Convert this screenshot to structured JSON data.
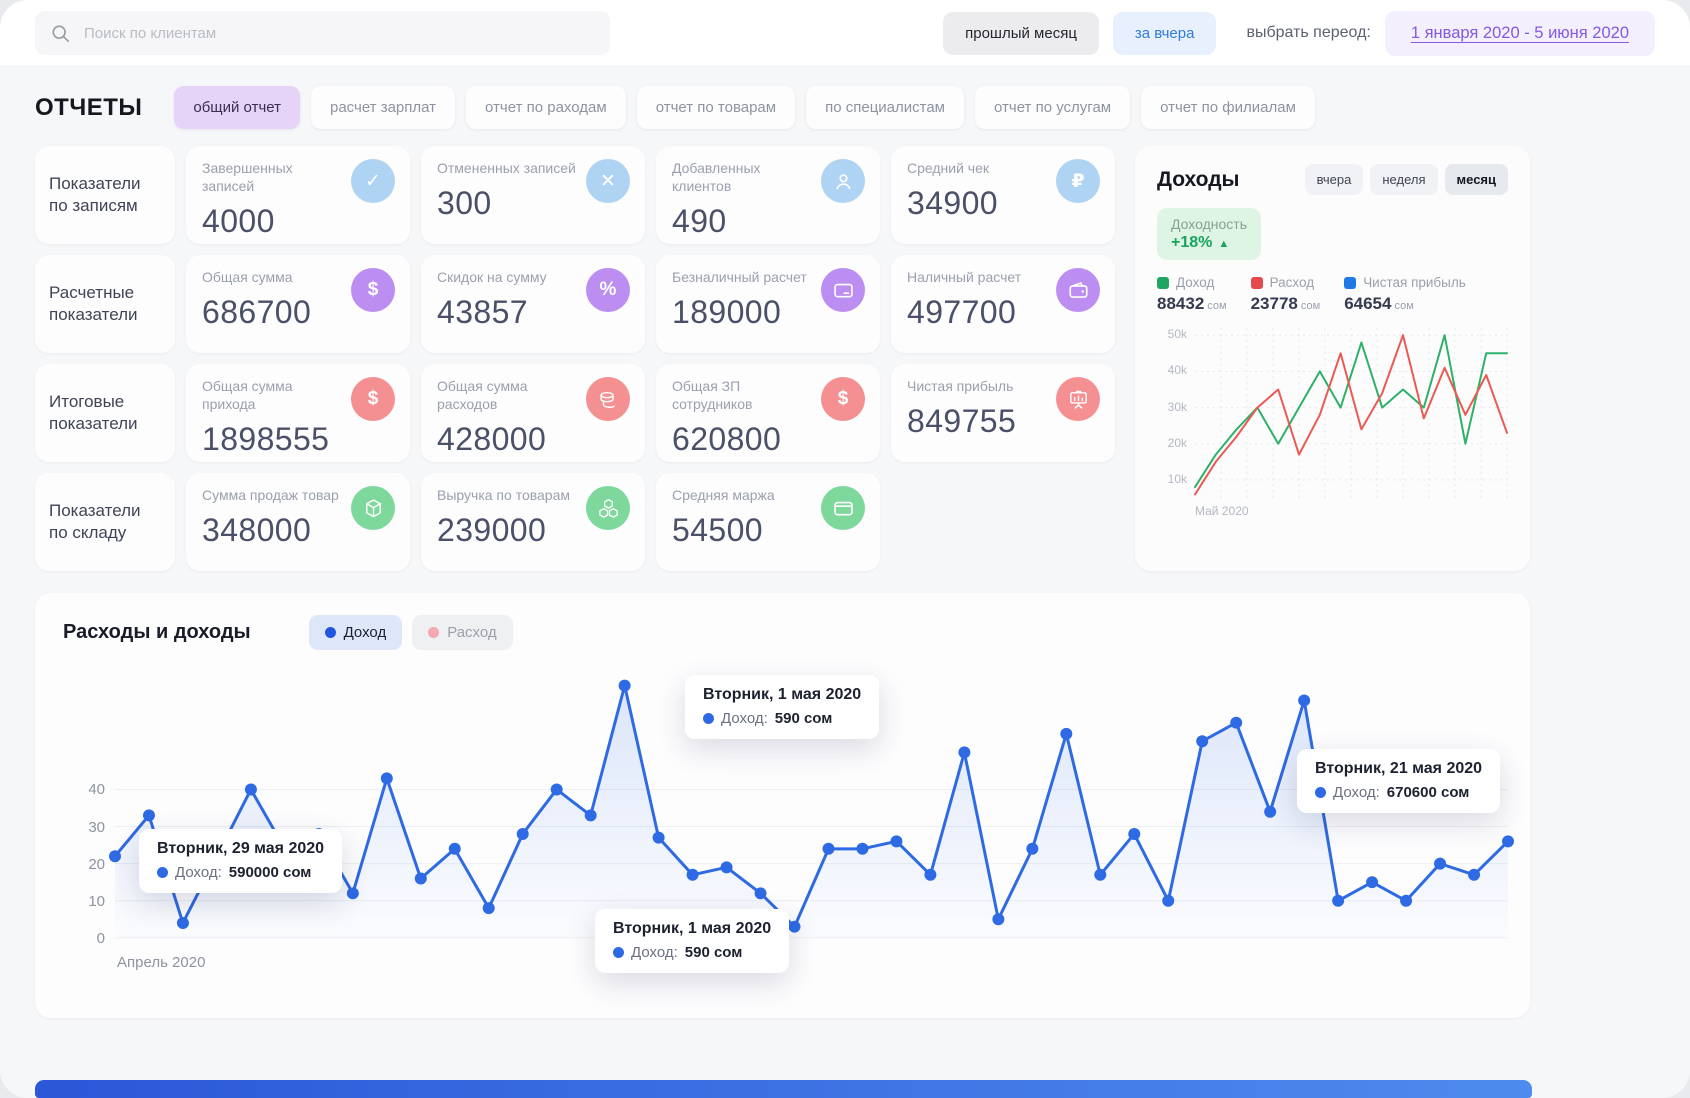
{
  "topbar": {
    "search_placeholder": "Поиск по клиентам",
    "prev_month_label": "прошлый месяц",
    "yesterday_label": "за вчера",
    "period_label": "выбрать переод:",
    "period_value": "1 января 2020 - 5 июня 2020"
  },
  "reports": {
    "title": "ОТЧЕТЫ",
    "tabs": [
      {
        "label": "общий отчет",
        "active": true
      },
      {
        "label": "расчет зарплат",
        "active": false
      },
      {
        "label": "отчет по раходам",
        "active": false
      },
      {
        "label": "отчет по товарам",
        "active": false
      },
      {
        "label": "по специалистам",
        "active": false
      },
      {
        "label": "отчет по услугам",
        "active": false
      },
      {
        "label": "отчет по филиалам",
        "active": false
      }
    ]
  },
  "metric_groups": [
    {
      "group_label": "Показатели по записям",
      "accent": "blue",
      "cards": [
        {
          "label": "Завершенных записей",
          "value": "4000",
          "icon": "check-icon"
        },
        {
          "label": "Отмененных записей",
          "value": "300",
          "icon": "close-icon"
        },
        {
          "label": "Добавленных клиентов",
          "value": "490",
          "icon": "user-icon"
        },
        {
          "label": "Средний чек",
          "value": "34900",
          "icon": "ruble-icon"
        }
      ]
    },
    {
      "group_label": "Расчетные показатели",
      "accent": "purple",
      "cards": [
        {
          "label": "Общая сумма",
          "value": "686700",
          "icon": "dollar-icon"
        },
        {
          "label": "Скидок на сумму",
          "value": "43857",
          "icon": "percent-icon"
        },
        {
          "label": "Безналичный расчет",
          "value": "189000",
          "icon": "credit-card-icon"
        },
        {
          "label": "Наличный расчет",
          "value": "497700",
          "icon": "wallet-icon"
        }
      ]
    },
    {
      "group_label": "Итоговые показатели",
      "accent": "red",
      "cards": [
        {
          "label": "Общая сумма прихода",
          "value": "1898555",
          "icon": "dollar-icon"
        },
        {
          "label": "Общая сумма расходов",
          "value": "428000",
          "icon": "coins-icon"
        },
        {
          "label": "Общая ЗП сотрудников",
          "value": "620800",
          "icon": "dollar-icon"
        },
        {
          "label": "Чистая прибыль",
          "value": "849755",
          "icon": "presentation-chart-icon"
        }
      ]
    },
    {
      "group_label": "Показатели по складу",
      "accent": "green",
      "cards": [
        {
          "label": "Сумма продаж товар",
          "value": "348000",
          "icon": "cube-icon"
        },
        {
          "label": "Выручка по товарам",
          "value": "239000",
          "icon": "cubes-icon"
        },
        {
          "label": "Средняя маржа",
          "value": "54500",
          "icon": "margin-card-icon"
        }
      ]
    }
  ],
  "income_panel": {
    "title": "Доходы",
    "tabs": [
      {
        "label": "вчера",
        "active": false
      },
      {
        "label": "неделя",
        "active": false
      },
      {
        "label": "месяц",
        "active": true
      }
    ],
    "profitability_label": "Доходность",
    "profitability_value": "+18%",
    "legend": [
      {
        "label": "Доход",
        "value": "88432",
        "unit": "сом",
        "color": "#1fa562"
      },
      {
        "label": "Расход",
        "value": "23778",
        "unit": "сом",
        "color": "#e5484d"
      },
      {
        "label": "Чистая прибыль",
        "value": "64654",
        "unit": "сом",
        "color": "#1f7ae6"
      }
    ]
  },
  "bottom_panel": {
    "title": "Расходы и доходы",
    "legend": [
      {
        "label": "Доход",
        "active": true
      },
      {
        "label": "Расход",
        "active": false
      }
    ],
    "tooltips": [
      {
        "title": "Вторник, 1 мая 2020",
        "label": "Доход:",
        "value": "590 сом"
      },
      {
        "title": "Вторник, 29 мая 2020",
        "label": "Доход:",
        "value": "590000 сом"
      },
      {
        "title": "Вторник, 21 мая 2020",
        "label": "Доход:",
        "value": "670600 сом"
      },
      {
        "title": "Вторник, 1 мая 2020",
        "label": "Доход:",
        "value": "590 сом"
      }
    ]
  },
  "chart_data": [
    {
      "id": "income-mini-chart",
      "type": "line",
      "title": "Доходы",
      "x_label": "Май 2020",
      "ylim": [
        5,
        52
      ],
      "yticks": [
        10,
        20,
        30,
        40,
        50
      ],
      "ytick_labels": [
        "10k",
        "20k",
        "30k",
        "40k",
        "50k"
      ],
      "grid": true,
      "legend_position": "top",
      "series": [
        {
          "name": "Доход",
          "color": "#2cb168",
          "values": [
            8,
            17,
            24,
            30,
            20,
            30,
            40,
            30,
            48,
            30,
            35,
            30,
            50,
            20,
            45,
            45
          ]
        },
        {
          "name": "Расход",
          "color": "#ea5a52",
          "values": [
            6,
            15,
            22,
            30,
            35,
            17,
            28,
            45,
            24,
            34,
            50,
            27,
            41,
            28,
            39,
            23
          ]
        }
      ]
    },
    {
      "id": "income-expense-main-chart",
      "type": "area-line",
      "title": "Расходы и доходы",
      "x_label": "Апрель 2020",
      "ylim": [
        0,
        70
      ],
      "yticks": [
        0,
        10,
        20,
        30,
        40
      ],
      "ytick_labels": [
        "0",
        "10",
        "20",
        "30",
        "40"
      ],
      "grid": true,
      "series": [
        {
          "name": "Доход",
          "color": "#2e6ae3",
          "values": [
            22,
            33,
            4,
            22,
            40,
            24,
            28,
            12,
            43,
            16,
            24,
            8,
            28,
            40,
            33,
            68,
            27,
            17,
            19,
            12,
            3,
            24,
            24,
            26,
            17,
            50,
            5,
            24,
            55,
            17,
            28,
            10,
            53,
            58,
            34,
            64,
            10,
            15,
            10,
            20,
            17,
            26
          ]
        }
      ],
      "annotations": [
        {
          "x_index": 15,
          "text": "Вторник, 1 мая 2020 — Доход: 590 сом"
        },
        {
          "x_index": 2,
          "text": "Вторник, 29 мая 2020 — Доход: 590000 сом"
        },
        {
          "x_index": 35,
          "text": "Вторник, 21 мая 2020 — Доход: 670600 сом"
        },
        {
          "x_index": 20,
          "text": "Вторник, 1 мая 2020 — Доход: 590 сом"
        }
      ]
    }
  ]
}
